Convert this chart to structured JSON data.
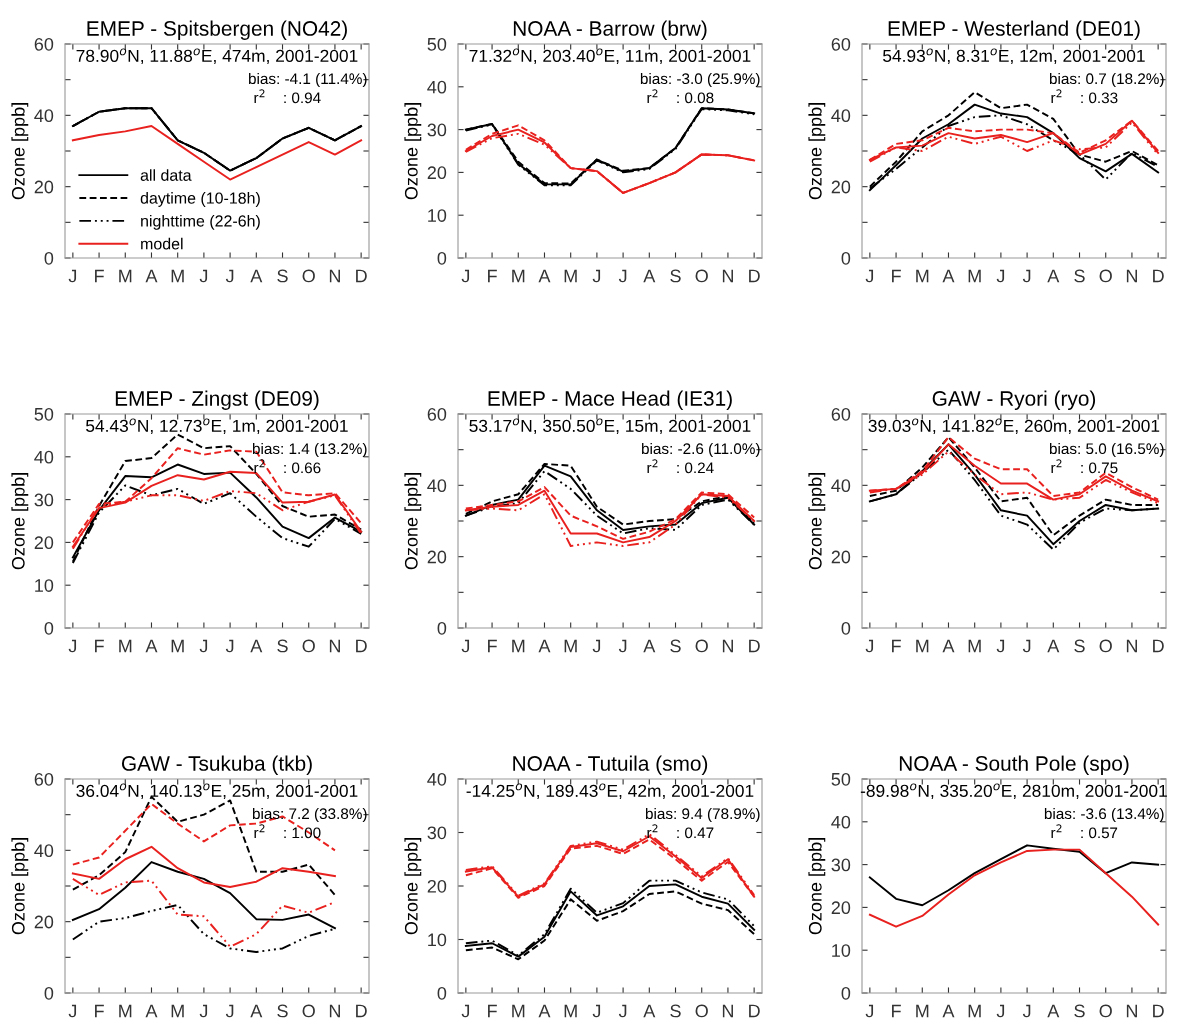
{
  "chart_data": [
    {
      "type": "line",
      "title": "EMEP - Spitsbergen (NO42)",
      "ylabel": "Ozone [ppb]",
      "categories": [
        "J",
        "F",
        "M",
        "A",
        "M",
        "J",
        "J",
        "A",
        "S",
        "O",
        "N",
        "D"
      ],
      "ylim": [
        0,
        60
      ],
      "yticks": [
        0,
        {
          "value": 10,
          "label": null
        },
        20,
        {
          "value": 30,
          "label": null
        },
        40,
        {
          "value": 50,
          "label": null
        },
        60
      ],
      "grid": false,
      "legend": "left",
      "annotations": [
        "78.90$^{o}$N, 11.88$^{o}$E, 474m, 2001-2001",
        "bias: -4.1 (11.4%)",
        "r$^{2}$    : 0.94"
      ],
      "series": [
        {
          "name": "all data",
          "color": "#000000",
          "line_style": "solid",
          "values": [
            37,
            41,
            42,
            42,
            33,
            29.5,
            24.5,
            28,
            33.5,
            36.5,
            33,
            37
          ]
        },
        {
          "name": "daytime (10-18h)",
          "color": "#000000",
          "line_style": "dashed",
          "values": [
            37,
            41,
            42,
            42,
            33,
            29.5,
            24.5,
            28,
            33.5,
            36.5,
            33,
            37
          ]
        },
        {
          "name": "nighttime (22-6h)",
          "color": "#000000",
          "line_style": "dotted",
          "values": [
            37,
            41,
            42,
            42,
            33,
            29.5,
            24.5,
            28,
            33.5,
            36.5,
            33,
            37
          ]
        },
        {
          "name": "model",
          "color": "#e8211f",
          "line_style": "solid",
          "values": [
            33,
            34.5,
            35.5,
            37,
            32,
            27,
            22,
            25.5,
            29,
            32.5,
            29,
            33
          ]
        }
      ]
    },
    {
      "type": "line",
      "title": "NOAA - Barrow (brw)",
      "ylabel": "Ozone [ppb]",
      "categories": [
        "J",
        "F",
        "M",
        "A",
        "M",
        "J",
        "J",
        "A",
        "S",
        "O",
        "N",
        "D"
      ],
      "ylim": [
        0,
        50
      ],
      "yticks": [
        0,
        10,
        20,
        30,
        40,
        50
      ],
      "grid": false,
      "annotations": [
        "71.32$^{o}$N, 203.40$^{o}$E, 11m, 2001-2001",
        "bias: -3.0 (25.9%)",
        "r$^{2}$    : 0.08"
      ],
      "series": [
        {
          "color": "#000000",
          "line_style": "solid",
          "values": [
            30,
            31.3,
            22,
            17.2,
            17.2,
            23,
            20.2,
            21,
            25.7,
            35,
            34.7,
            33.8
          ]
        },
        {
          "color": "#000000",
          "line_style": "dashed",
          "values": [
            30,
            31.3,
            22.5,
            17.5,
            17.4,
            23,
            20.4,
            21,
            25.7,
            35,
            34.7,
            33.8
          ]
        },
        {
          "color": "#000000",
          "line_style": "dotted",
          "values": [
            29.8,
            31.2,
            21.8,
            17,
            17,
            22.8,
            20,
            20.8,
            25.5,
            34.8,
            34.5,
            33.6
          ]
        },
        {
          "color": "#e8211f",
          "line_style": "solid",
          "values": [
            25,
            28.5,
            30,
            27,
            21,
            20.3,
            15.2,
            17.5,
            20,
            24.2,
            24,
            22.8
          ]
        },
        {
          "color": "#e8211f",
          "line_style": "dashed",
          "values": [
            25.3,
            29,
            31,
            27.5,
            21,
            20.3,
            15.2,
            17.5,
            20,
            24.2,
            24,
            22.8
          ]
        },
        {
          "color": "#e8211f",
          "line_style": "dotted",
          "values": [
            24.8,
            28,
            29,
            26.5,
            21,
            20.3,
            15.2,
            17.5,
            20,
            24.2,
            24,
            22.8
          ]
        }
      ]
    },
    {
      "type": "line",
      "title": "EMEP - Westerland (DE01)",
      "ylabel": "Ozone [ppb]",
      "categories": [
        "J",
        "F",
        "M",
        "A",
        "M",
        "J",
        "J",
        "A",
        "S",
        "O",
        "N",
        "D"
      ],
      "ylim": [
        0,
        60
      ],
      "yticks": [
        0,
        {
          "value": 10,
          "label": null
        },
        20,
        {
          "value": 30,
          "label": null
        },
        40,
        {
          "value": 50,
          "label": null
        },
        60
      ],
      "grid": false,
      "annotations": [
        "54.93$^{o}$N, 8.31$^{o}$E, 12m, 2001-2001",
        "bias: 0.7 (18.2%)",
        "r$^{2}$    : 0.33"
      ],
      "series": [
        {
          "color": "#000000",
          "line_style": "solid",
          "values": [
            19,
            26,
            33.5,
            37.5,
            43,
            40.5,
            39.5,
            35,
            28,
            24.3,
            29.2,
            24
          ]
        },
        {
          "color": "#000000",
          "line_style": "dashed",
          "values": [
            20,
            27,
            35.5,
            40,
            46.5,
            42,
            43,
            39,
            29,
            27,
            30,
            26
          ]
        },
        {
          "color": "#000000",
          "line_style": "dotted",
          "values": [
            19.5,
            25,
            31,
            37,
            39.5,
            40,
            37.5,
            33,
            29,
            22,
            29.5,
            25.5
          ]
        },
        {
          "color": "#e8211f",
          "line_style": "solid",
          "values": [
            27.5,
            31,
            31.5,
            35,
            33.5,
            34.5,
            32.5,
            35,
            29,
            32,
            38.5,
            29.5
          ]
        },
        {
          "color": "#e8211f",
          "line_style": "dashed",
          "values": [
            27.5,
            32,
            33,
            36.5,
            35.5,
            36,
            36,
            35,
            29.5,
            33,
            38.5,
            30
          ]
        },
        {
          "color": "#e8211f",
          "line_style": "dotted",
          "values": [
            27,
            31,
            30,
            34,
            32,
            34,
            30,
            33,
            30.5,
            31,
            38,
            29
          ]
        }
      ]
    },
    {
      "type": "line",
      "title": "EMEP - Zingst (DE09)",
      "ylabel": "Ozone [ppb]",
      "categories": [
        "J",
        "F",
        "M",
        "A",
        "M",
        "J",
        "J",
        "A",
        "S",
        "O",
        "N",
        "D"
      ],
      "ylim": [
        0,
        50
      ],
      "yticks": [
        0,
        10,
        20,
        30,
        40,
        50
      ],
      "grid": false,
      "annotations": [
        "54.43$^{o}$N, 12.73$^{o}$E, 1m, 2001-2001",
        "bias: 1.4 (13.2%)",
        "r$^{2}$    : 0.66"
      ],
      "series": [
        {
          "color": "#000000",
          "line_style": "solid",
          "values": [
            16.5,
            27.5,
            35.5,
            35.2,
            38.2,
            36,
            36.3,
            30.5,
            23.7,
            21,
            25.8,
            22.5
          ]
        },
        {
          "color": "#000000",
          "line_style": "dashed",
          "values": [
            15.5,
            28.5,
            39,
            39.7,
            45.2,
            42,
            42.5,
            36,
            28.5,
            26,
            26.5,
            23
          ]
        },
        {
          "color": "#000000",
          "line_style": "dotted",
          "values": [
            15.2,
            27,
            33.3,
            31,
            32.5,
            29,
            31.5,
            26,
            21,
            19,
            25.5,
            22
          ]
        },
        {
          "color": "#e8211f",
          "line_style": "solid",
          "values": [
            19,
            28,
            29.3,
            33.2,
            35.7,
            34.7,
            36.5,
            36.2,
            29.3,
            29.5,
            31.2,
            22.5
          ]
        },
        {
          "color": "#e8211f",
          "line_style": "dashed",
          "values": [
            20,
            29,
            29.5,
            35,
            42,
            40.5,
            41.5,
            41.2,
            31.7,
            31,
            31.5,
            24.5
          ]
        },
        {
          "color": "#e8211f",
          "line_style": "dotted",
          "values": [
            18.5,
            28.5,
            29.5,
            31,
            31,
            29.7,
            32,
            31.5,
            27.5,
            29.5,
            31,
            22
          ]
        }
      ]
    },
    {
      "type": "line",
      "title": "EMEP - Mace Head (IE31)",
      "ylabel": "Ozone [ppb]",
      "categories": [
        "J",
        "F",
        "M",
        "A",
        "M",
        "J",
        "J",
        "A",
        "S",
        "O",
        "N",
        "D"
      ],
      "ylim": [
        0,
        60
      ],
      "yticks": [
        0,
        {
          "value": 10,
          "label": null
        },
        20,
        {
          "value": 30,
          "label": null
        },
        40,
        {
          "value": 50,
          "label": null
        },
        60
      ],
      "grid": false,
      "annotations": [
        "53.17$^{o}$N, 350.50$^{o}$E, 15m, 2001-2001",
        "bias: -2.6 (11.0%)",
        "r$^{2}$    : 0.24"
      ],
      "series": [
        {
          "color": "#000000",
          "line_style": "solid",
          "values": [
            31.5,
            34.5,
            36,
            45.5,
            42.5,
            33,
            27.5,
            28.5,
            29,
            35,
            36.5,
            29
          ]
        },
        {
          "color": "#000000",
          "line_style": "dashed",
          "values": [
            32,
            35.5,
            37.5,
            46,
            45.5,
            34,
            29,
            30,
            30.5,
            35.5,
            37,
            29.5
          ]
        },
        {
          "color": "#000000",
          "line_style": "dotted",
          "values": [
            31.5,
            34,
            35,
            44,
            39,
            31.5,
            26.5,
            28,
            27.5,
            34.5,
            36,
            29
          ]
        },
        {
          "color": "#e8211f",
          "line_style": "solid",
          "values": [
            33,
            34,
            34.5,
            38.5,
            26.5,
            26.5,
            24,
            25.5,
            30,
            37.5,
            37,
            30
          ]
        },
        {
          "color": "#e8211f",
          "line_style": "dashed",
          "values": [
            33.5,
            34.5,
            35.5,
            39.5,
            31.5,
            28.5,
            25,
            27,
            30.5,
            38,
            37.5,
            31
          ]
        },
        {
          "color": "#e8211f",
          "line_style": "dotted",
          "values": [
            33,
            33.5,
            33,
            37.5,
            23,
            24,
            23,
            24,
            29,
            37.5,
            36.5,
            30
          ]
        }
      ]
    },
    {
      "type": "line",
      "title": "GAW - Ryori (ryo)",
      "ylabel": "Ozone [ppb]",
      "categories": [
        "J",
        "F",
        "M",
        "A",
        "M",
        "J",
        "J",
        "A",
        "S",
        "O",
        "N",
        "D"
      ],
      "ylim": [
        0,
        60
      ],
      "yticks": [
        0,
        {
          "value": 10,
          "label": null
        },
        20,
        {
          "value": 30,
          "label": null
        },
        40,
        {
          "value": 50,
          "label": null
        },
        60
      ],
      "grid": false,
      "annotations": [
        "39.03$^{o}$N, 141.82$^{o}$E, 260m, 2001-2001",
        "bias: 5.0 (16.5%)",
        "r$^{2}$    : 0.75"
      ],
      "series": [
        {
          "color": "#000000",
          "line_style": "solid",
          "values": [
            35.5,
            37.5,
            44,
            51.5,
            43,
            33,
            31.5,
            23.5,
            30,
            34.5,
            33,
            33.5
          ]
        },
        {
          "color": "#000000",
          "line_style": "dashed",
          "values": [
            37,
            38.5,
            45,
            53.5,
            45,
            35.5,
            36.5,
            26,
            31.5,
            36,
            34.5,
            34.5
          ]
        },
        {
          "color": "#000000",
          "line_style": "dotted",
          "values": [
            35.5,
            37.5,
            43.5,
            50,
            41.5,
            31.5,
            29,
            22,
            29.5,
            33.5,
            33,
            33.5
          ]
        },
        {
          "color": "#e8211f",
          "line_style": "solid",
          "values": [
            38.5,
            39,
            43.5,
            51.5,
            45.5,
            40.5,
            40.5,
            36,
            37.5,
            42.5,
            38.5,
            35.5
          ]
        },
        {
          "color": "#e8211f",
          "line_style": "dashed",
          "values": [
            38.5,
            39,
            44,
            53.5,
            47.5,
            44.5,
            44.5,
            37,
            38,
            43.5,
            39.5,
            36
          ]
        },
        {
          "color": "#e8211f",
          "line_style": "dotted",
          "values": [
            38,
            39,
            43,
            49.5,
            43,
            37.5,
            38,
            36,
            36.5,
            41.5,
            38,
            35
          ]
        }
      ]
    },
    {
      "type": "line",
      "title": "GAW - Tsukuba (tkb)",
      "ylabel": "Ozone [ppb]",
      "categories": [
        "J",
        "F",
        "M",
        "A",
        "M",
        "J",
        "J",
        "A",
        "S",
        "O",
        "N",
        "D"
      ],
      "ylim": [
        0,
        60
      ],
      "yticks": [
        0,
        {
          "value": 10,
          "label": null
        },
        20,
        {
          "value": 30,
          "label": null
        },
        40,
        {
          "value": 50,
          "label": null
        },
        60
      ],
      "grid": false,
      "annotations": [
        "36.04$^{o}$N, 140.13$^{o}$E, 25m, 2001-2001",
        "bias: 7.2 (33.8%)",
        "r$^{2}$    : 1.00"
      ],
      "series": [
        {
          "color": "#000000",
          "line_style": "solid",
          "values": [
            20.5,
            23.5,
            29.5,
            36.7,
            34,
            32,
            28,
            20.7,
            20.5,
            22,
            18.2,
            null
          ]
        },
        {
          "color": "#000000",
          "line_style": "dashed",
          "values": [
            29,
            33,
            39.5,
            55,
            48,
            50,
            54,
            34,
            34,
            36,
            27.5,
            null
          ]
        },
        {
          "color": "#000000",
          "line_style": "dotted",
          "values": [
            15,
            20,
            21,
            23,
            24.7,
            16.5,
            12.5,
            11.5,
            12.5,
            16,
            18,
            null
          ]
        },
        {
          "color": "#e8211f",
          "line_style": "solid",
          "values": [
            33.5,
            32,
            37.5,
            41,
            35,
            31,
            29.7,
            31.2,
            35,
            34,
            32.8,
            null
          ]
        },
        {
          "color": "#e8211f",
          "line_style": "dashed",
          "values": [
            36,
            38,
            45.5,
            53,
            47.5,
            42.5,
            47,
            47.5,
            49.5,
            45,
            40,
            null
          ]
        },
        {
          "color": "#e8211f",
          "line_style": "dotted",
          "values": [
            32,
            27.5,
            31,
            31.5,
            22,
            21.5,
            13,
            16.5,
            24.5,
            22.5,
            25.5,
            null
          ]
        }
      ]
    },
    {
      "type": "line",
      "title": "NOAA - Tutuila (smo)",
      "ylabel": "Ozone [ppb]",
      "categories": [
        "J",
        "F",
        "M",
        "A",
        "M",
        "J",
        "J",
        "A",
        "S",
        "O",
        "N",
        "D"
      ],
      "ylim": [
        0,
        40
      ],
      "yticks": [
        0,
        10,
        20,
        30,
        40
      ],
      "grid": false,
      "annotations": [
        "-14.25$^{o}$N, 189.43$^{o}$E, 42m, 2001-2001",
        "bias: 9.4 (78.9%)",
        "r$^{2}$    : 0.47"
      ],
      "series": [
        {
          "color": "#000000",
          "line_style": "solid",
          "values": [
            8.8,
            9.3,
            6.8,
            10.5,
            19,
            14.5,
            16.2,
            20,
            20.3,
            18,
            16.7,
            11.8
          ]
        },
        {
          "color": "#000000",
          "line_style": "dashed",
          "values": [
            8,
            8.5,
            6.3,
            9.8,
            17.5,
            13.5,
            15.3,
            18.5,
            19,
            16.7,
            15.5,
            11
          ]
        },
        {
          "color": "#000000",
          "line_style": "dotted",
          "values": [
            9.3,
            9.8,
            7,
            11,
            19.5,
            15,
            16.8,
            21,
            21,
            18.8,
            17.5,
            12.5
          ]
        },
        {
          "color": "#e8211f",
          "line_style": "solid",
          "values": [
            22.7,
            23.5,
            18,
            20.3,
            27.3,
            28,
            26.5,
            29.3,
            25.5,
            21.5,
            25,
            18
          ]
        },
        {
          "color": "#e8211f",
          "line_style": "dashed",
          "values": [
            22,
            23.3,
            17.8,
            20,
            27,
            27.5,
            26,
            28.7,
            25,
            21,
            24.5,
            18
          ]
        },
        {
          "color": "#e8211f",
          "line_style": "dotted",
          "values": [
            23,
            23.7,
            18.2,
            20.5,
            27.5,
            28.3,
            26.8,
            29.7,
            25.8,
            21.8,
            25.2,
            18.3
          ]
        }
      ]
    },
    {
      "type": "line",
      "title": "NOAA - South Pole (spo)",
      "ylabel": "Ozone [ppb]",
      "categories": [
        "J",
        "F",
        "M",
        "A",
        "M",
        "J",
        "J",
        "A",
        "S",
        "O",
        "N",
        "D"
      ],
      "ylim": [
        0,
        50
      ],
      "yticks": [
        0,
        10,
        20,
        30,
        40,
        50
      ],
      "grid": false,
      "annotations": [
        "-89.98$^{o}$N, 335.20$^{o}$E, 2810m, 2001-2001",
        "bias: -3.6 (13.4%)",
        "r$^{2}$    : 0.57"
      ],
      "series": [
        {
          "color": "#000000",
          "line_style": "solid",
          "values": [
            27,
            22,
            20.5,
            24,
            28,
            31.3,
            34.5,
            33.7,
            33,
            28,
            30.5,
            30
          ]
        },
        {
          "color": "#e8211f",
          "line_style": "solid",
          "values": [
            18.3,
            15.5,
            18,
            23,
            27.5,
            30.5,
            33.2,
            33.5,
            33.5,
            28,
            22.5,
            16
          ]
        }
      ]
    }
  ]
}
